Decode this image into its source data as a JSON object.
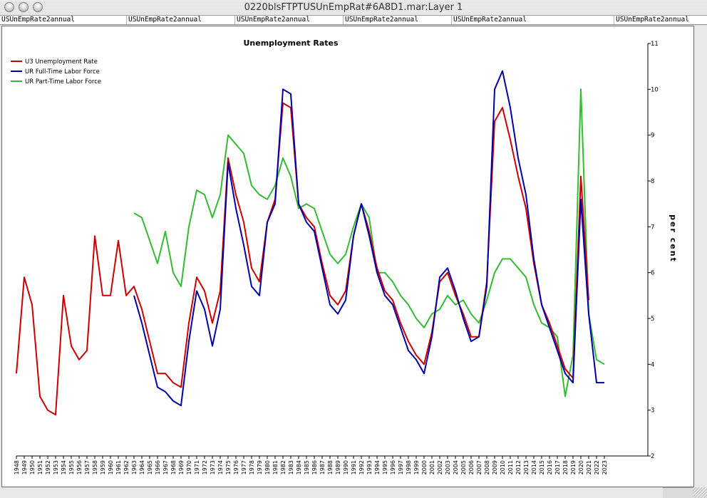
{
  "window": {
    "title": "0220blsFTPTUSUnEmpRat#6A8D1.mar:Layer 1"
  },
  "tabs": [
    "USUnEmpRate2annual",
    "USUnEmpRate2annual",
    "USUnEmpRate2annual",
    "USUnEmpRate2annual",
    "USUnEmpRate2annual",
    "USUnEmpRate2annual"
  ],
  "chart_data": {
    "type": "line",
    "title": "Unemployment Rates",
    "xlabel": "",
    "ylabel": "per cent",
    "ylim": [
      2,
      11
    ],
    "yticks": [
      2,
      3,
      4,
      5,
      6,
      7,
      8,
      9,
      10,
      11
    ],
    "y_axis_side": "right",
    "legend_position": "top-left",
    "grid": false,
    "x": [
      1948,
      1949,
      1950,
      1951,
      1952,
      1953,
      1954,
      1955,
      1956,
      1957,
      1958,
      1959,
      1960,
      1961,
      1962,
      1963,
      1964,
      1965,
      1966,
      1967,
      1968,
      1969,
      1970,
      1971,
      1972,
      1973,
      1974,
      1975,
      1976,
      1977,
      1978,
      1979,
      1980,
      1981,
      1982,
      1983,
      1984,
      1985,
      1986,
      1987,
      1988,
      1989,
      1990,
      1991,
      1992,
      1993,
      1994,
      1995,
      1996,
      1997,
      1998,
      1999,
      2000,
      2001,
      2002,
      2003,
      2004,
      2005,
      2006,
      2007,
      2008,
      2009,
      2010,
      2011,
      2012,
      2013,
      2014,
      2015,
      2016,
      2017,
      2018,
      2019,
      2020,
      2021,
      2022,
      2023
    ],
    "series": [
      {
        "name": "U3 Unemployment Rate",
        "color": "#cc0000",
        "values": [
          3.8,
          5.9,
          5.3,
          3.3,
          3.0,
          2.9,
          5.5,
          4.4,
          4.1,
          4.3,
          6.8,
          5.5,
          5.5,
          6.7,
          5.5,
          5.7,
          5.2,
          4.5,
          3.8,
          3.8,
          3.6,
          3.5,
          4.9,
          5.9,
          5.6,
          4.9,
          5.6,
          8.5,
          7.7,
          7.1,
          6.1,
          5.8,
          7.1,
          7.6,
          9.7,
          9.6,
          7.5,
          7.2,
          7.0,
          6.2,
          5.5,
          5.3,
          5.6,
          6.8,
          7.5,
          6.9,
          6.1,
          5.6,
          5.4,
          4.9,
          4.5,
          4.2,
          4.0,
          4.7,
          5.8,
          6.0,
          5.5,
          5.1,
          4.6,
          4.6,
          5.8,
          9.3,
          9.6,
          8.9,
          8.1,
          7.4,
          6.2,
          5.3,
          4.9,
          4.4,
          3.9,
          3.7,
          8.1,
          5.4,
          null,
          null
        ]
      },
      {
        "name": "UR Full-Time Labor Force",
        "color": "#0000aa",
        "values": [
          null,
          null,
          null,
          null,
          null,
          null,
          null,
          null,
          null,
          null,
          null,
          null,
          null,
          null,
          null,
          5.5,
          4.9,
          4.2,
          3.5,
          3.4,
          3.2,
          3.1,
          4.5,
          5.6,
          5.2,
          4.4,
          5.2,
          8.4,
          7.4,
          6.6,
          5.7,
          5.5,
          7.1,
          7.5,
          10.0,
          9.9,
          7.5,
          7.1,
          6.9,
          6.1,
          5.3,
          5.1,
          5.4,
          6.8,
          7.5,
          6.8,
          6.0,
          5.5,
          5.3,
          4.8,
          4.3,
          4.1,
          3.8,
          4.6,
          5.9,
          6.1,
          5.6,
          5.0,
          4.5,
          4.6,
          5.7,
          10.0,
          10.4,
          9.6,
          8.5,
          7.7,
          6.3,
          5.3,
          4.8,
          4.3,
          3.8,
          3.6,
          7.6,
          5.1,
          3.6,
          3.6
        ]
      },
      {
        "name": "UR Part-Time Labor Force",
        "color": "#33bb33",
        "values": [
          null,
          null,
          null,
          null,
          null,
          null,
          null,
          null,
          null,
          null,
          null,
          null,
          null,
          null,
          null,
          7.3,
          7.2,
          6.7,
          6.2,
          6.9,
          6.0,
          5.7,
          7.0,
          7.8,
          7.7,
          7.2,
          7.7,
          9.0,
          8.8,
          8.6,
          7.9,
          7.7,
          7.6,
          7.9,
          8.5,
          8.1,
          7.4,
          7.5,
          7.4,
          6.9,
          6.4,
          6.2,
          6.4,
          7.0,
          7.5,
          7.2,
          6.0,
          6.0,
          5.8,
          5.5,
          5.3,
          5.0,
          4.8,
          5.1,
          5.2,
          5.5,
          5.3,
          5.4,
          5.1,
          4.9,
          5.4,
          6.0,
          6.3,
          6.3,
          6.1,
          5.9,
          5.3,
          4.9,
          4.8,
          4.6,
          3.3,
          4.2,
          10.0,
          5.1,
          4.1,
          4.0
        ]
      }
    ]
  }
}
